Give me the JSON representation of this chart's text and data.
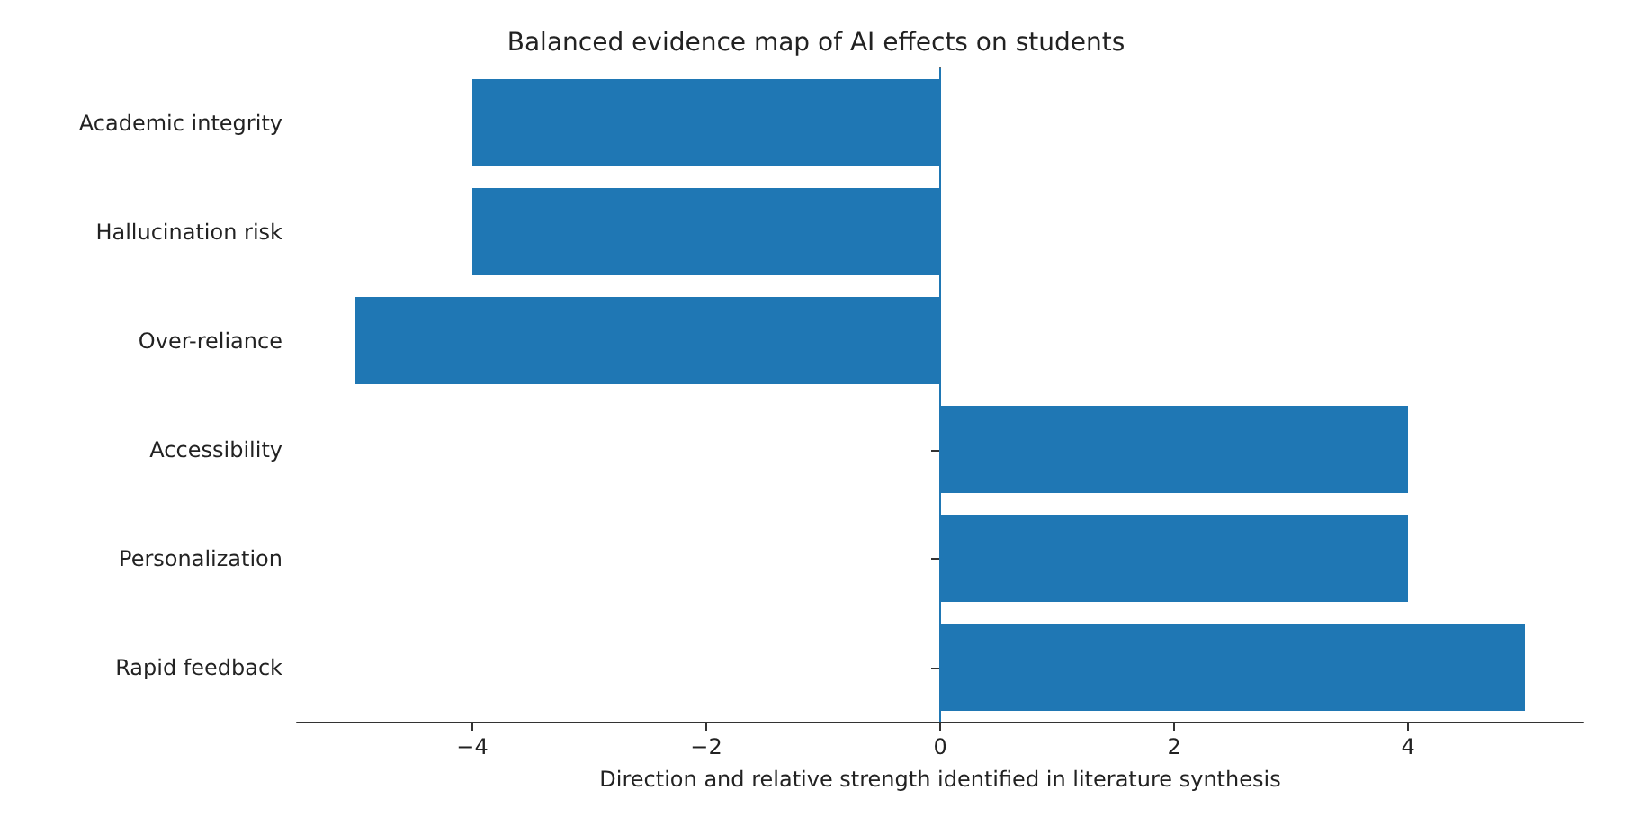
{
  "chart_data": {
    "type": "bar",
    "orientation": "horizontal",
    "title": "Balanced evidence map of AI effects on students",
    "xlabel": "Direction and relative strength identified in literature synthesis",
    "categories": [
      "Academic integrity",
      "Hallucination risk",
      "Over-reliance",
      "Accessibility",
      "Personalization",
      "Rapid feedback"
    ],
    "values": [
      -4,
      -4,
      -5,
      4,
      4,
      5
    ],
    "color": "#1f77b4",
    "xlim": [
      -5.5,
      5.5
    ],
    "xticks": [
      -4,
      -2,
      0,
      2,
      4
    ],
    "grid": false,
    "ref_lines": [
      {
        "axis": "x",
        "value": 0,
        "color": "#1f77b4"
      }
    ]
  }
}
